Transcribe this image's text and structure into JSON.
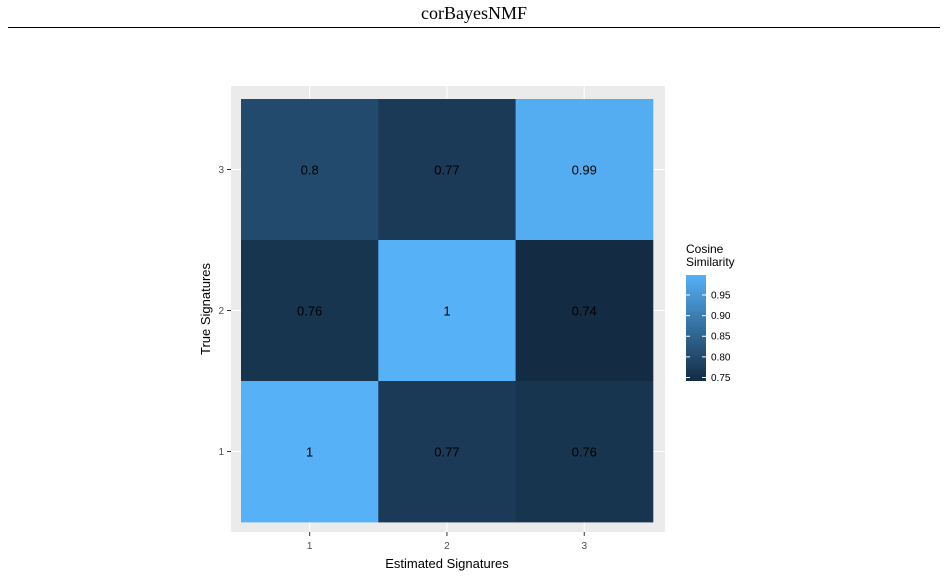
{
  "page": {
    "title": "corBayesNMF"
  },
  "chart_data": {
    "type": "heatmap",
    "title": "",
    "xlabel": "Estimated Signatures",
    "ylabel": "True Signatures",
    "x_categories": [
      "1",
      "2",
      "3"
    ],
    "y_categories": [
      "1",
      "2",
      "3"
    ],
    "cells": [
      {
        "x": "1",
        "y": "3",
        "value": 0.8,
        "label": "0.8"
      },
      {
        "x": "2",
        "y": "3",
        "value": 0.77,
        "label": "0.77"
      },
      {
        "x": "3",
        "y": "3",
        "value": 0.99,
        "label": "0.99"
      },
      {
        "x": "1",
        "y": "2",
        "value": 0.76,
        "label": "0.76"
      },
      {
        "x": "2",
        "y": "2",
        "value": 1.0,
        "label": "1"
      },
      {
        "x": "3",
        "y": "2",
        "value": 0.74,
        "label": "0.74"
      },
      {
        "x": "1",
        "y": "1",
        "value": 1.0,
        "label": "1"
      },
      {
        "x": "2",
        "y": "1",
        "value": 0.77,
        "label": "0.77"
      },
      {
        "x": "3",
        "y": "1",
        "value": 0.76,
        "label": "0.76"
      }
    ],
    "legend": {
      "title_lines": [
        "Cosine",
        "Similarity"
      ],
      "position": "right",
      "ticks": [
        0.95,
        0.9,
        0.85,
        0.8,
        0.75
      ],
      "tick_labels": [
        "0.95",
        "0.90",
        "0.85",
        "0.80",
        "0.75"
      ],
      "range": [
        0.7415,
        0.9985
      ]
    },
    "color_low": "#132B43",
    "color_high": "#56B1F7",
    "panel_background": "#EBEBEB",
    "gridlines": "white",
    "grid": true
  }
}
